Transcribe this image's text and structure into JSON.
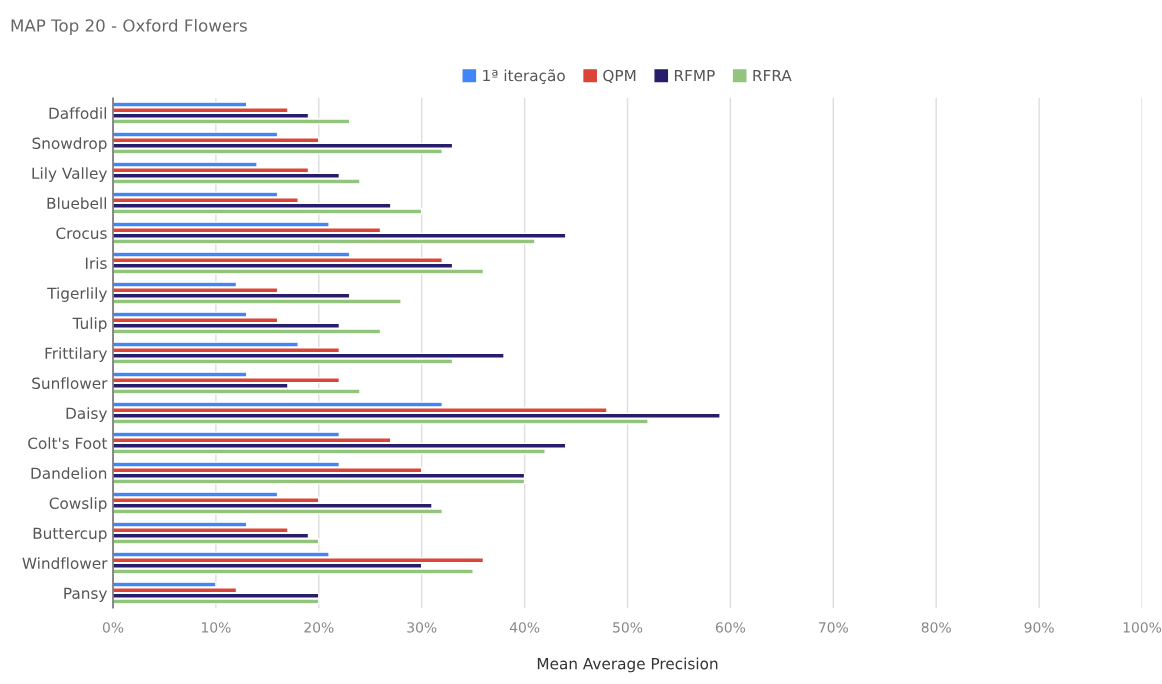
{
  "chart_data": {
    "type": "bar",
    "orientation": "horizontal",
    "title": "MAP Top 20 - Oxford Flowers",
    "xlabel": "Mean Average Precision",
    "categories": [
      "Daffodil",
      "Snowdrop",
      "Lily Valley",
      "Bluebell",
      "Crocus",
      "Iris",
      "Tigerlily",
      "Tulip",
      "Frittilary",
      "Sunflower",
      "Daisy",
      "Colt's Foot",
      "Dandelion",
      "Cowslip",
      "Buttercup",
      "Windflower",
      "Pansy"
    ],
    "series": [
      {
        "name": "1ª iteração",
        "color": "#4285f4",
        "values": [
          13,
          16,
          14,
          16,
          21,
          23,
          12,
          13,
          18,
          13,
          32,
          22,
          22,
          16,
          13,
          21,
          10
        ]
      },
      {
        "name": "QPM",
        "color": "#db4437",
        "values": [
          17,
          20,
          19,
          18,
          26,
          32,
          16,
          16,
          22,
          22,
          48,
          27,
          30,
          20,
          17,
          36,
          12
        ]
      },
      {
        "name": "RFMP",
        "color": "#271d6b",
        "values": [
          19,
          33,
          22,
          27,
          44,
          33,
          23,
          22,
          38,
          17,
          59,
          44,
          40,
          31,
          19,
          30,
          20
        ]
      },
      {
        "name": "RFRA",
        "color": "#93c47d",
        "values": [
          23,
          32,
          24,
          30,
          41,
          36,
          28,
          26,
          33,
          24,
          52,
          42,
          40,
          32,
          20,
          35,
          20
        ]
      }
    ],
    "xlim": [
      0,
      100
    ],
    "xticks": [
      {
        "value": 0,
        "label": "0%"
      },
      {
        "value": 10,
        "label": "10%"
      },
      {
        "value": 20,
        "label": "20%"
      },
      {
        "value": 30,
        "label": "30%"
      },
      {
        "value": 40,
        "label": "40%"
      },
      {
        "value": 50,
        "label": "50%"
      },
      {
        "value": 60,
        "label": "60%"
      },
      {
        "value": 70,
        "label": "70%"
      },
      {
        "value": 80,
        "label": "80%"
      },
      {
        "value": 90,
        "label": "90%"
      },
      {
        "value": 100,
        "label": "100%"
      }
    ],
    "grid": "x",
    "legend": "top"
  }
}
